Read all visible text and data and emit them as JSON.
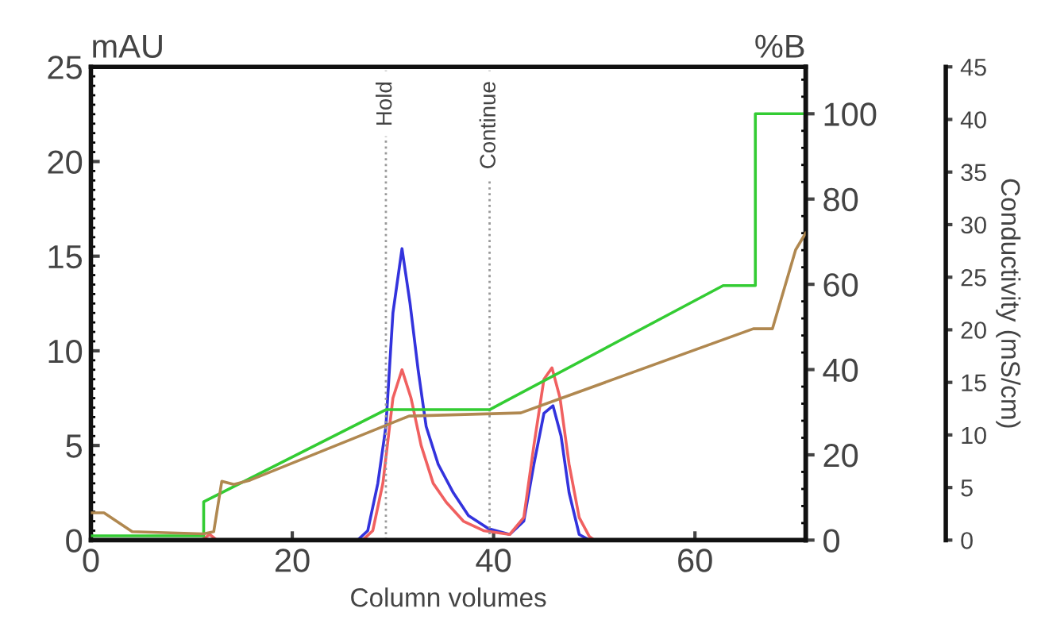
{
  "chart_data": {
    "type": "line",
    "xlabel": "Column volumes",
    "ylabel": "mAU",
    "y2label": "%B",
    "y3label": "Conductivity (mS/cm)",
    "xlim": [
      0,
      71
    ],
    "xticks": [
      0,
      20,
      40,
      60
    ],
    "ylim": [
      0,
      25
    ],
    "yticks": [
      0,
      5,
      10,
      15,
      20,
      25
    ],
    "y2lim": [
      0,
      111
    ],
    "y2ticks": [
      0,
      20,
      40,
      60,
      80,
      100
    ],
    "y3lim": [
      0,
      45
    ],
    "y3ticks": [
      0,
      5,
      10,
      15,
      20,
      25,
      30,
      35,
      40,
      45
    ],
    "grid": false,
    "line_style": "solid",
    "marker": "none",
    "ref_lines": [
      {
        "axis": "x",
        "value": 29.3,
        "label": "Hold",
        "color": "#999999",
        "line_style": "dotted"
      },
      {
        "axis": "x",
        "value": 39.6,
        "label": "Continue",
        "color": "#999999",
        "line_style": "dotted"
      }
    ],
    "series": [
      {
        "color": "#b08850",
        "axis": "y3",
        "x": [
          0,
          1.3,
          4.1,
          11.2,
          12.2,
          13,
          14.2,
          15.8,
          31.6,
          42.7,
          65.8,
          67.7,
          70,
          71
        ],
        "values": [
          2.6,
          2.6,
          0.8,
          0.6,
          0.8,
          5.6,
          5.3,
          5.7,
          11.8,
          12.1,
          20.1,
          20.1,
          27.6,
          29.2
        ]
      },
      {
        "color": "#33cc33",
        "axis": "y2",
        "x": [
          0,
          11.2,
          11.2,
          29.3,
          39.6,
          62.8,
          66,
          66,
          71
        ],
        "values": [
          1,
          1,
          9,
          30.6,
          30.6,
          59.7,
          59.7,
          100,
          100
        ]
      },
      {
        "color": "#3333dd",
        "x": [
          0,
          26.5,
          27.5,
          28.5,
          29.3,
          30,
          30.9,
          31.7,
          32.5,
          33.3,
          34.5,
          36,
          37.5,
          39.5,
          41.6,
          43,
          44,
          45,
          45.9,
          46.7,
          47.5,
          48.5,
          49.5,
          71
        ],
        "values": [
          0,
          0,
          0.5,
          3,
          6,
          12,
          15.4,
          12.5,
          9,
          6,
          4,
          2.5,
          1.3,
          0.6,
          0.3,
          1,
          4,
          6.7,
          7.1,
          5.5,
          2.5,
          0.3,
          0,
          0
        ]
      },
      {
        "color": "#f06060",
        "x": [
          0,
          11,
          11.8,
          12.5,
          27,
          28,
          29,
          30,
          30.9,
          31.8,
          32.8,
          34,
          35.3,
          37,
          39,
          41.6,
          43,
          44,
          45,
          45.8,
          46.6,
          47.5,
          48.5,
          49.5,
          50,
          71
        ],
        "values": [
          0,
          0,
          0.3,
          0,
          0,
          0.5,
          3,
          7.5,
          9,
          7.5,
          5,
          3,
          2,
          1,
          0.5,
          0.3,
          1.2,
          5,
          8.5,
          9.1,
          7.5,
          4,
          1.2,
          0.2,
          0,
          0
        ]
      }
    ]
  }
}
